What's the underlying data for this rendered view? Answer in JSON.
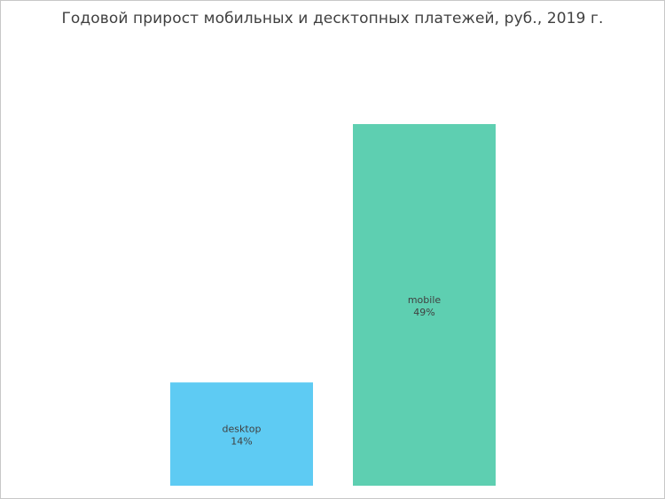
{
  "chart_data": {
    "type": "bar",
    "title": "Годовой прирост мобильных и десктопных платежей, руб., 2019 г.",
    "categories": [
      "desktop",
      "mobile"
    ],
    "values": [
      14,
      49
    ],
    "value_labels": [
      "14%",
      "49%"
    ],
    "colors": [
      "#5ecbf3",
      "#5ecfb1"
    ],
    "ylim": [
      0,
      49
    ],
    "grid": false,
    "legend": "none"
  }
}
